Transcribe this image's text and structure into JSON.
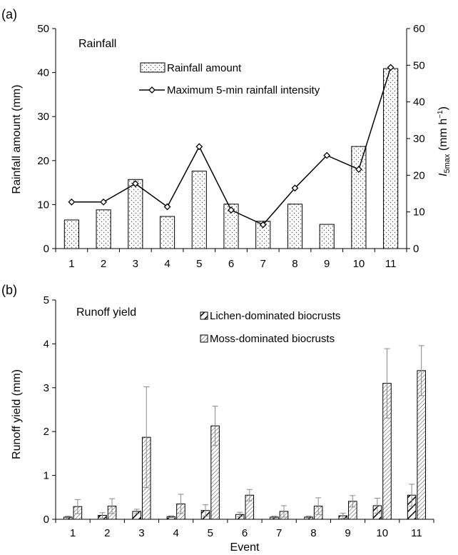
{
  "chart_data": [
    {
      "panel_label": "(a)",
      "type": "bar",
      "title": "Rainfall",
      "categories": [
        "1",
        "2",
        "3",
        "4",
        "5",
        "6",
        "7",
        "8",
        "9",
        "10",
        "11"
      ],
      "series": [
        {
          "name": "Rainfall amount",
          "type": "bar",
          "axis": "left",
          "values": [
            6.5,
            8.8,
            15.7,
            7.3,
            17.6,
            10.1,
            6.2,
            10.1,
            5.5,
            23.2,
            40.9
          ]
        },
        {
          "name": "Maximum 5-min rainfall intensity",
          "type": "line",
          "axis": "right",
          "values": [
            12.7,
            12.7,
            17.7,
            11.4,
            27.8,
            10.5,
            6.5,
            16.5,
            25.4,
            21.6,
            49.4
          ]
        }
      ],
      "ylabel": "Rainfall amount (mm)",
      "ylim": [
        0,
        50
      ],
      "yticks": [
        "0",
        "10",
        "20",
        "30",
        "40",
        "50"
      ],
      "y2label_main": "I",
      "y2label_sub": "5max",
      "y2label_rest": " (mm h",
      "y2label_sup": "−1",
      "y2label_end": ")",
      "y2lim": [
        0,
        60
      ],
      "y2ticks": [
        "0",
        "10",
        "20",
        "30",
        "40",
        "50",
        "60"
      ],
      "legend_position": "top-center",
      "grid": false
    },
    {
      "panel_label": "(b)",
      "type": "bar",
      "title": "Runoff yield",
      "categories": [
        "1",
        "2",
        "3",
        "4",
        "5",
        "6",
        "7",
        "8",
        "9",
        "10",
        "11"
      ],
      "series": [
        {
          "name": "Lichen-dominated biocrusts",
          "values": [
            0.05,
            0.09,
            0.18,
            0.06,
            0.2,
            0.11,
            0.05,
            0.05,
            0.08,
            0.31,
            0.55
          ],
          "error": [
            0.02,
            0.06,
            0.05,
            0.02,
            0.13,
            0.05,
            0.02,
            0.02,
            0.06,
            0.17,
            0.25
          ]
        },
        {
          "name": "Moss-dominated biocrusts",
          "values": [
            0.29,
            0.3,
            1.87,
            0.35,
            2.13,
            0.55,
            0.18,
            0.3,
            0.41,
            3.1,
            3.39
          ],
          "error": [
            0.16,
            0.17,
            1.15,
            0.22,
            0.45,
            0.13,
            0.13,
            0.19,
            0.13,
            0.79,
            0.57
          ]
        }
      ],
      "xlabel": "Event",
      "ylabel": "Runoff yield  (mm)",
      "ylim": [
        0,
        5
      ],
      "yticks": [
        "0",
        "1",
        "2",
        "3",
        "4",
        "5"
      ],
      "legend_position": "top-center",
      "grid": false
    }
  ]
}
